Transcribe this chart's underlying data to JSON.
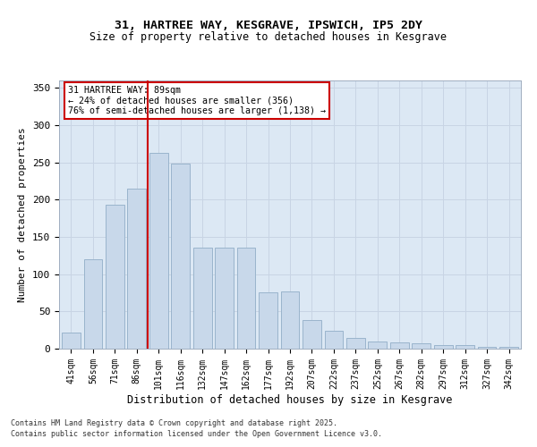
{
  "title_line1": "31, HARTREE WAY, KESGRAVE, IPSWICH, IP5 2DY",
  "title_line2": "Size of property relative to detached houses in Kesgrave",
  "xlabel": "Distribution of detached houses by size in Kesgrave",
  "ylabel": "Number of detached properties",
  "categories": [
    "41sqm",
    "56sqm",
    "71sqm",
    "86sqm",
    "101sqm",
    "116sqm",
    "132sqm",
    "147sqm",
    "162sqm",
    "177sqm",
    "192sqm",
    "207sqm",
    "222sqm",
    "237sqm",
    "252sqm",
    "267sqm",
    "282sqm",
    "297sqm",
    "312sqm",
    "327sqm",
    "342sqm"
  ],
  "values": [
    22,
    120,
    193,
    215,
    263,
    248,
    136,
    136,
    136,
    76,
    77,
    39,
    24,
    14,
    10,
    8,
    7,
    5,
    5,
    3,
    2
  ],
  "bar_color": "#c8d8ea",
  "bar_edge_color": "#9ab4cc",
  "vline_color": "#cc0000",
  "vline_pos": 3.5,
  "annotation_title": "31 HARTREE WAY: 89sqm",
  "annotation_line2": "← 24% of detached houses are smaller (356)",
  "annotation_line3": "76% of semi-detached houses are larger (1,138) →",
  "annotation_box_color": "#cc0000",
  "ylim": [
    0,
    360
  ],
  "yticks": [
    0,
    50,
    100,
    150,
    200,
    250,
    300,
    350
  ],
  "grid_color": "#c8d4e4",
  "background_color": "#dce8f4",
  "footer_line1": "Contains HM Land Registry data © Crown copyright and database right 2025.",
  "footer_line2": "Contains public sector information licensed under the Open Government Licence v3.0."
}
